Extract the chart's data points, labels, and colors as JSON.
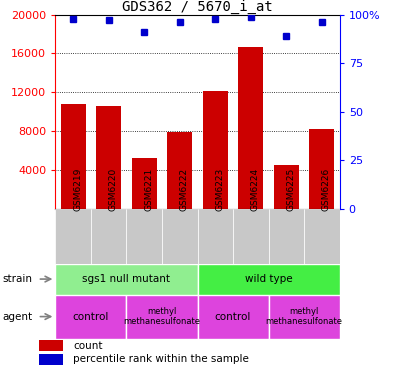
{
  "title": "GDS362 / 5670_i_at",
  "samples": [
    "GSM6219",
    "GSM6220",
    "GSM6221",
    "GSM6222",
    "GSM6223",
    "GSM6224",
    "GSM6225",
    "GSM6226"
  ],
  "counts": [
    10800,
    10600,
    5200,
    7900,
    12100,
    16700,
    4500,
    8200
  ],
  "percentiles": [
    98,
    97,
    91,
    96,
    98,
    99,
    89,
    96
  ],
  "ylim_left": [
    0,
    20000
  ],
  "ylim_right": [
    0,
    100
  ],
  "yticks_left": [
    4000,
    8000,
    12000,
    16000,
    20000
  ],
  "yticks_right": [
    0,
    25,
    50,
    75,
    100
  ],
  "bar_color": "#cc0000",
  "dot_color": "#0000cc",
  "tick_area_color": "#c8c8c8",
  "strain_color_left": "#90EE90",
  "strain_color_right": "#44ee44",
  "agent_color": "#dd44dd",
  "background_color": "#ffffff",
  "legend_count_color": "#cc0000",
  "legend_pct_color": "#0000cc"
}
